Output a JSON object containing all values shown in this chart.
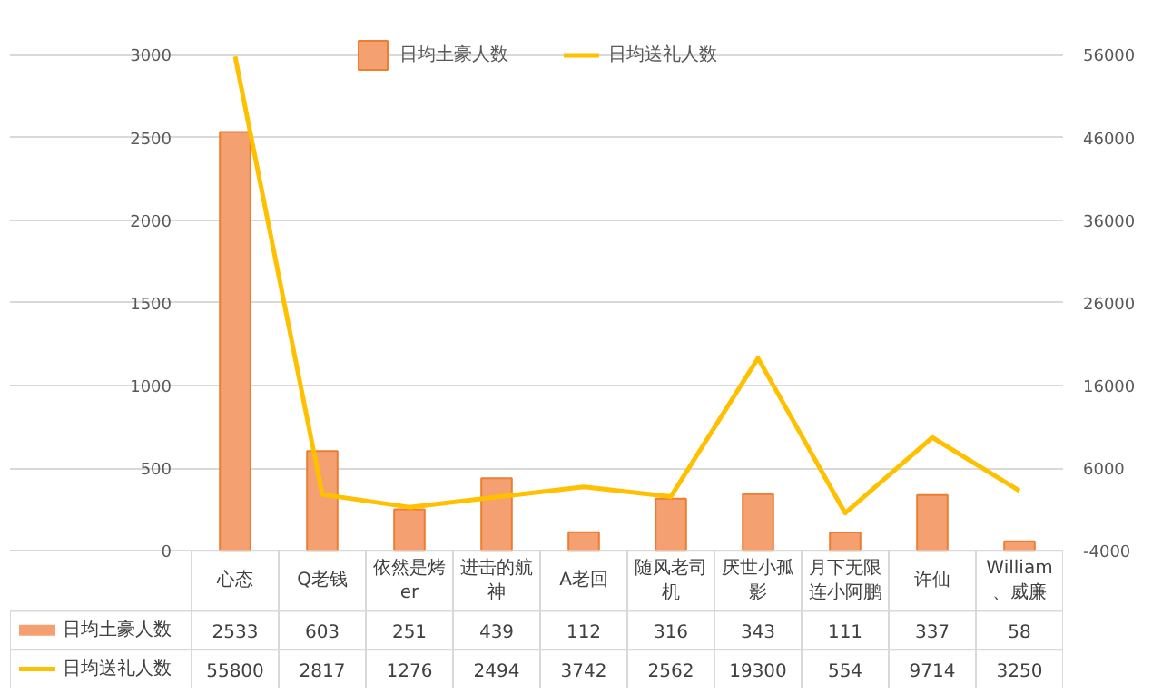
{
  "chart_data": {
    "type": "bar",
    "categories": [
      "心态",
      "Q老钱",
      "依然是烤er",
      "进击的航神",
      "A老回",
      "随风老司机",
      "厌世小孤影",
      "月下无限连小阿鹏",
      "许仙",
      "William、威廉"
    ],
    "series": [
      {
        "name": "日均土豪人数",
        "color": "#f4a071",
        "values": [
          2533,
          603,
          251,
          439,
          112,
          316,
          343,
          111,
          337,
          58
        ]
      },
      {
        "name": "日均送礼人数",
        "type": "line",
        "axis": "y2",
        "color": "#ffc000",
        "values": [
          55800,
          2817,
          1276,
          2494,
          3742,
          2562,
          19300,
          554,
          9714,
          3250
        ]
      }
    ],
    "ylim": [
      0,
      3000
    ],
    "yticks": [
      0,
      500,
      1000,
      1500,
      2000,
      2500,
      3000
    ],
    "y2lim": [
      -4000,
      56000
    ],
    "y2ticks": [
      -4000,
      6000,
      16000,
      26000,
      36000,
      46000,
      56000
    ],
    "grid": "y",
    "legend": "top",
    "marker": "none",
    "data_labels": true
  }
}
